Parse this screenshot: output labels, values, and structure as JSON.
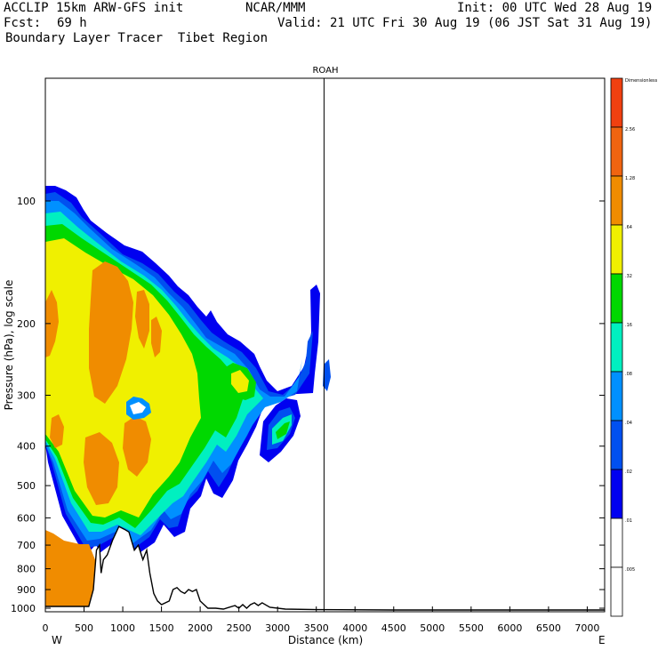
{
  "header": {
    "model": "ACCLIP 15km ARW-GFS init",
    "org": "NCAR/MMM",
    "init": "Init: 00 UTC Wed 28 Aug 19",
    "fcst_label": "Fcst:",
    "fcst_value": "69 h",
    "valid": "Valid: 21 UTC Fri 30 Aug 19 (06 JST Sat 31 Aug 19)",
    "field": "Boundary Layer Tracer  Tibet Region"
  },
  "chart_data": {
    "type": "heatmap",
    "title": "ROAH",
    "xlabel": "Distance (km)",
    "ylabel": "Pressure (hPa), log scale",
    "x_range": [
      0,
      7300
    ],
    "x_ticks": [
      "0",
      "500",
      "1000",
      "1500",
      "2000",
      "2500",
      "3000",
      "3500",
      "4000",
      "4500",
      "5000",
      "5500",
      "6000",
      "6500",
      "7000"
    ],
    "y_range": [
      1050,
      50
    ],
    "y_ticks": [
      "100",
      "200",
      "300",
      "400",
      "500",
      "600",
      "700",
      "800",
      "900",
      "1000"
    ],
    "direction_labels": [
      "W",
      "E"
    ],
    "marker_distance_km": 3600,
    "colorbar": {
      "levels": [
        {
          "label": "Dimensionless",
          "color": "#f04010"
        },
        {
          "label": "2.56",
          "color": "#f06410"
        },
        {
          "label": "1.28",
          "color": "#f08c00"
        },
        {
          "label": ".64",
          "color": "#f0f000"
        },
        {
          "label": ".32",
          "color": "#00d800"
        },
        {
          "label": ".16",
          "color": "#00f0c0"
        },
        {
          "label": ".08",
          "color": "#0090ff"
        },
        {
          "label": ".04",
          "color": "#0050f0"
        },
        {
          "label": ".02",
          "color": "#0000f0"
        },
        {
          "label": ".01",
          "color": "#ffffff"
        },
        {
          "label": ".005",
          "color": "#ffffff"
        }
      ]
    },
    "tracer_levels": [
      "0.01",
      "0.02",
      "0.04",
      "0.08",
      "0.16",
      "0.32",
      "0.64",
      "1.28"
    ],
    "terrain_pressure_profile": {
      "distance_km": [
        0,
        300,
        560,
        620,
        660,
        700,
        720,
        750,
        800,
        870,
        950,
        1020,
        1080,
        1150,
        1200,
        1260,
        1310,
        1350,
        1400,
        1450,
        1500,
        1600,
        1650,
        1700,
        1750,
        1800,
        1850,
        1900,
        1950,
        2000,
        2100,
        2200,
        2300,
        2450,
        2500,
        2550,
        2600,
        2650,
        2700,
        2750,
        2800,
        2900,
        3100,
        3500,
        4500,
        5500,
        6500,
        7300
      ],
      "pressure_hpa": [
        990,
        990,
        990,
        900,
        720,
        700,
        820,
        760,
        740,
        680,
        630,
        640,
        650,
        720,
        700,
        760,
        720,
        820,
        920,
        960,
        980,
        960,
        900,
        890,
        910,
        920,
        900,
        910,
        900,
        960,
        1000,
        1000,
        1005,
        985,
        1000,
        980,
        1000,
        980,
        970,
        985,
        970,
        995,
        1005,
        1008,
        1010,
        1010,
        1010,
        1010
      ]
    }
  }
}
